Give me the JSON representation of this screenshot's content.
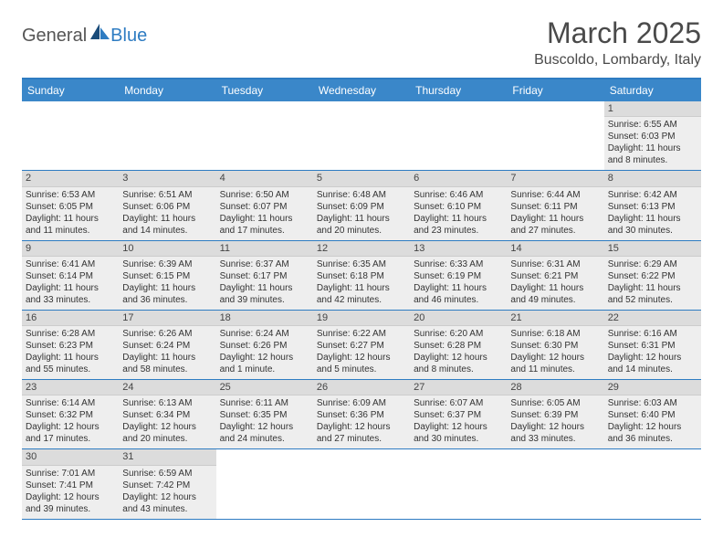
{
  "logo": {
    "text1": "General",
    "text2": "Blue",
    "icon_color_dark": "#1a4c7a",
    "icon_color_light": "#2e7cc2"
  },
  "title": {
    "month": "March 2025",
    "location": "Buscoldo, Lombardy, Italy"
  },
  "styling": {
    "header_bg": "#3a87c9",
    "header_border_top": "#2e7cc2",
    "week_border": "#2e7cc2",
    "day_number_bg": "#dcdcdc",
    "day_fill_bg": "#eeeeee",
    "text_color": "#333333"
  },
  "day_names": [
    "Sunday",
    "Monday",
    "Tuesday",
    "Wednesday",
    "Thursday",
    "Friday",
    "Saturday"
  ],
  "weeks": [
    [
      null,
      null,
      null,
      null,
      null,
      null,
      {
        "n": "1",
        "sunrise": "Sunrise: 6:55 AM",
        "sunset": "Sunset: 6:03 PM",
        "daylight": "Daylight: 11 hours and 8 minutes."
      }
    ],
    [
      {
        "n": "2",
        "sunrise": "Sunrise: 6:53 AM",
        "sunset": "Sunset: 6:05 PM",
        "daylight": "Daylight: 11 hours and 11 minutes."
      },
      {
        "n": "3",
        "sunrise": "Sunrise: 6:51 AM",
        "sunset": "Sunset: 6:06 PM",
        "daylight": "Daylight: 11 hours and 14 minutes."
      },
      {
        "n": "4",
        "sunrise": "Sunrise: 6:50 AM",
        "sunset": "Sunset: 6:07 PM",
        "daylight": "Daylight: 11 hours and 17 minutes."
      },
      {
        "n": "5",
        "sunrise": "Sunrise: 6:48 AM",
        "sunset": "Sunset: 6:09 PM",
        "daylight": "Daylight: 11 hours and 20 minutes."
      },
      {
        "n": "6",
        "sunrise": "Sunrise: 6:46 AM",
        "sunset": "Sunset: 6:10 PM",
        "daylight": "Daylight: 11 hours and 23 minutes."
      },
      {
        "n": "7",
        "sunrise": "Sunrise: 6:44 AM",
        "sunset": "Sunset: 6:11 PM",
        "daylight": "Daylight: 11 hours and 27 minutes."
      },
      {
        "n": "8",
        "sunrise": "Sunrise: 6:42 AM",
        "sunset": "Sunset: 6:13 PM",
        "daylight": "Daylight: 11 hours and 30 minutes."
      }
    ],
    [
      {
        "n": "9",
        "sunrise": "Sunrise: 6:41 AM",
        "sunset": "Sunset: 6:14 PM",
        "daylight": "Daylight: 11 hours and 33 minutes."
      },
      {
        "n": "10",
        "sunrise": "Sunrise: 6:39 AM",
        "sunset": "Sunset: 6:15 PM",
        "daylight": "Daylight: 11 hours and 36 minutes."
      },
      {
        "n": "11",
        "sunrise": "Sunrise: 6:37 AM",
        "sunset": "Sunset: 6:17 PM",
        "daylight": "Daylight: 11 hours and 39 minutes."
      },
      {
        "n": "12",
        "sunrise": "Sunrise: 6:35 AM",
        "sunset": "Sunset: 6:18 PM",
        "daylight": "Daylight: 11 hours and 42 minutes."
      },
      {
        "n": "13",
        "sunrise": "Sunrise: 6:33 AM",
        "sunset": "Sunset: 6:19 PM",
        "daylight": "Daylight: 11 hours and 46 minutes."
      },
      {
        "n": "14",
        "sunrise": "Sunrise: 6:31 AM",
        "sunset": "Sunset: 6:21 PM",
        "daylight": "Daylight: 11 hours and 49 minutes."
      },
      {
        "n": "15",
        "sunrise": "Sunrise: 6:29 AM",
        "sunset": "Sunset: 6:22 PM",
        "daylight": "Daylight: 11 hours and 52 minutes."
      }
    ],
    [
      {
        "n": "16",
        "sunrise": "Sunrise: 6:28 AM",
        "sunset": "Sunset: 6:23 PM",
        "daylight": "Daylight: 11 hours and 55 minutes."
      },
      {
        "n": "17",
        "sunrise": "Sunrise: 6:26 AM",
        "sunset": "Sunset: 6:24 PM",
        "daylight": "Daylight: 11 hours and 58 minutes."
      },
      {
        "n": "18",
        "sunrise": "Sunrise: 6:24 AM",
        "sunset": "Sunset: 6:26 PM",
        "daylight": "Daylight: 12 hours and 1 minute."
      },
      {
        "n": "19",
        "sunrise": "Sunrise: 6:22 AM",
        "sunset": "Sunset: 6:27 PM",
        "daylight": "Daylight: 12 hours and 5 minutes."
      },
      {
        "n": "20",
        "sunrise": "Sunrise: 6:20 AM",
        "sunset": "Sunset: 6:28 PM",
        "daylight": "Daylight: 12 hours and 8 minutes."
      },
      {
        "n": "21",
        "sunrise": "Sunrise: 6:18 AM",
        "sunset": "Sunset: 6:30 PM",
        "daylight": "Daylight: 12 hours and 11 minutes."
      },
      {
        "n": "22",
        "sunrise": "Sunrise: 6:16 AM",
        "sunset": "Sunset: 6:31 PM",
        "daylight": "Daylight: 12 hours and 14 minutes."
      }
    ],
    [
      {
        "n": "23",
        "sunrise": "Sunrise: 6:14 AM",
        "sunset": "Sunset: 6:32 PM",
        "daylight": "Daylight: 12 hours and 17 minutes."
      },
      {
        "n": "24",
        "sunrise": "Sunrise: 6:13 AM",
        "sunset": "Sunset: 6:34 PM",
        "daylight": "Daylight: 12 hours and 20 minutes."
      },
      {
        "n": "25",
        "sunrise": "Sunrise: 6:11 AM",
        "sunset": "Sunset: 6:35 PM",
        "daylight": "Daylight: 12 hours and 24 minutes."
      },
      {
        "n": "26",
        "sunrise": "Sunrise: 6:09 AM",
        "sunset": "Sunset: 6:36 PM",
        "daylight": "Daylight: 12 hours and 27 minutes."
      },
      {
        "n": "27",
        "sunrise": "Sunrise: 6:07 AM",
        "sunset": "Sunset: 6:37 PM",
        "daylight": "Daylight: 12 hours and 30 minutes."
      },
      {
        "n": "28",
        "sunrise": "Sunrise: 6:05 AM",
        "sunset": "Sunset: 6:39 PM",
        "daylight": "Daylight: 12 hours and 33 minutes."
      },
      {
        "n": "29",
        "sunrise": "Sunrise: 6:03 AM",
        "sunset": "Sunset: 6:40 PM",
        "daylight": "Daylight: 12 hours and 36 minutes."
      }
    ],
    [
      {
        "n": "30",
        "sunrise": "Sunrise: 7:01 AM",
        "sunset": "Sunset: 7:41 PM",
        "daylight": "Daylight: 12 hours and 39 minutes."
      },
      {
        "n": "31",
        "sunrise": "Sunrise: 6:59 AM",
        "sunset": "Sunset: 7:42 PM",
        "daylight": "Daylight: 12 hours and 43 minutes."
      },
      null,
      null,
      null,
      null,
      null
    ]
  ]
}
